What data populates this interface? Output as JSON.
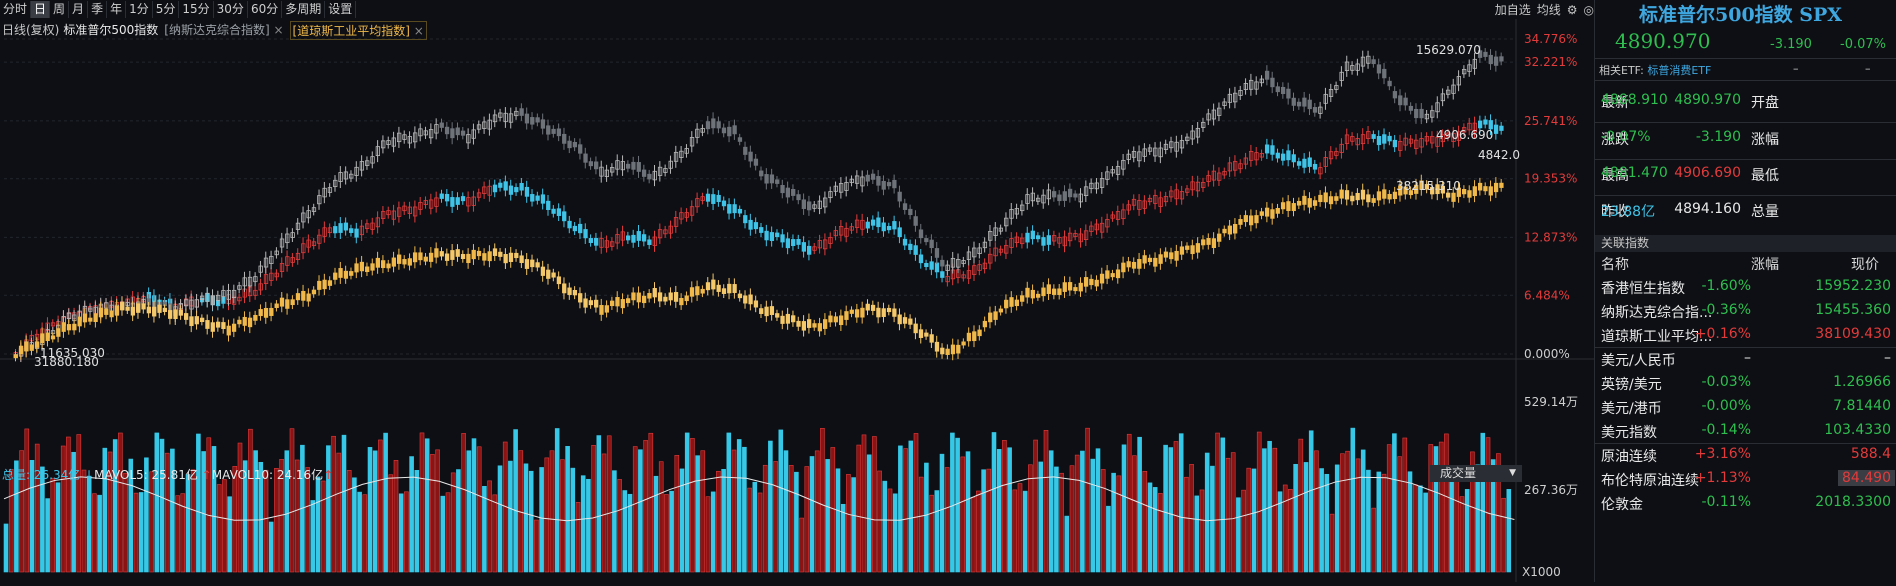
{
  "toolbar": {
    "periods": [
      "分时",
      "日",
      "周",
      "月",
      "季",
      "年",
      "1分",
      "5分",
      "15分",
      "30分",
      "60分",
      "多周期",
      "设置"
    ],
    "active": "日",
    "right_items": [
      "加自选",
      "均线"
    ]
  },
  "legend_row": {
    "prefix": "日线(复权)",
    "main_name": "标准普尔500指数",
    "compare1": "[纳斯达克综合指数]",
    "compare2": "[道琼斯工业平均指数]"
  },
  "y_axis_percent": [
    "34.776%",
    "32.221%",
    "25.741%",
    "19.353%",
    "12.873%",
    "6.484%",
    "0.000%"
  ],
  "annotations": {
    "nasdaq_high": "15629.070",
    "spx_high": "4906.690",
    "spx_last": "4842.0",
    "dow_high": "38215.310",
    "nasdaq_low": "11635.030",
    "dow_low": "31880.180"
  },
  "volume": {
    "label_total": "总量: 26.34亿",
    "label_ma5": "MAVOL5: 25.81亿",
    "label_ma10": "MAVOL10: 24.16亿",
    "dropdown": "成交量",
    "y_top": "529.14万",
    "y_mid": "267.36万",
    "unit": "X1000"
  },
  "panel": {
    "title": "标准普尔500指数 SPX",
    "price": "4890.970",
    "change": "-3.190",
    "change_pct": "-0.07%",
    "etf_label": "相关ETF:",
    "etf_name": "标普消费ETF",
    "etf_dash1": "–",
    "etf_dash2": "–",
    "quote": [
      {
        "l1": "最新",
        "v1": "4890.970",
        "c1": "green",
        "l2": "开盘",
        "v2": "4888.910",
        "c2": "green"
      },
      {
        "l1": "涨跌",
        "v1": "-3.190",
        "c1": "green",
        "l2": "涨幅",
        "v2": "-0.07%",
        "c2": "green"
      },
      {
        "l1": "最高",
        "v1": "4906.690",
        "c1": "red",
        "l2": "最低",
        "v2": "4881.470",
        "c2": "green"
      },
      {
        "l1": "昨收",
        "v1": "4894.160",
        "c1": "white",
        "l2": "总量",
        "v2": "23.88亿",
        "c2": "cyan"
      }
    ],
    "related_header": "关联指数",
    "col_name": "名称",
    "col_chg": "涨幅",
    "col_price": "现价",
    "related": [
      {
        "name": "香港恒生指数",
        "chg": "-1.60%",
        "price": "15952.230",
        "color": "green"
      },
      {
        "name": "纳斯达克综合指...",
        "chg": "-0.36%",
        "price": "15455.360",
        "color": "green"
      },
      {
        "name": "道琼斯工业平均...",
        "chg": "+0.16%",
        "price": "38109.430",
        "color": "red"
      },
      {
        "name": "美元/人民币",
        "chg": "–",
        "price": "–",
        "color": "white"
      },
      {
        "name": "英镑/美元",
        "chg": "-0.03%",
        "price": "1.26966",
        "color": "green"
      },
      {
        "name": "美元/港币",
        "chg": "-0.00%",
        "price": "7.81440",
        "color": "green"
      },
      {
        "name": "美元指数",
        "chg": "-0.14%",
        "price": "103.4330",
        "color": "green"
      },
      {
        "name": "原油连续",
        "chg": "+3.16%",
        "price": "588.4",
        "color": "red"
      },
      {
        "name": "布伦特原油连续",
        "chg": "+1.13%",
        "price": "84.490",
        "color": "red"
      },
      {
        "name": "伦敦金",
        "chg": "-0.11%",
        "price": "2018.3300",
        "color": "green"
      }
    ]
  },
  "chart_data": {
    "type": "line",
    "title": "标准普尔500指数",
    "y_unit": "%",
    "ylim": [
      0,
      34.776
    ],
    "series": [
      {
        "name": "标准普尔500指数",
        "color": "#e23b3b",
        "values": [
          0,
          2.5,
          4,
          5,
          5.5,
          6.2,
          5.2,
          6.0,
          5.8,
          7,
          9.5,
          12,
          14,
          13.5,
          15.5,
          16,
          17.2,
          16.8,
          18.5,
          18.2,
          16.5,
          14,
          12,
          13,
          12.5,
          15,
          17.5,
          16,
          13.5,
          12.5,
          11.5,
          13.5,
          14.5,
          14,
          10.5,
          8.5,
          9,
          11.5,
          13,
          12.5,
          13,
          14.5,
          16.5,
          17,
          18,
          19.5,
          21,
          22.5,
          21.5,
          20.5,
          23.5,
          24,
          23.2,
          23.5,
          24,
          25.5,
          24.8
        ]
      },
      {
        "name": "纳斯达克综合指数",
        "color": "#9aa0a6",
        "values": [
          0,
          1.5,
          4,
          5,
          5.2,
          5.6,
          5,
          6,
          6.5,
          8.5,
          12,
          15.5,
          19,
          20.5,
          23.5,
          24,
          25,
          24,
          26,
          26.5,
          25,
          23,
          20,
          21,
          19.5,
          22,
          25.5,
          24.5,
          20,
          18,
          16,
          18.5,
          19.5,
          18.5,
          13.5,
          9.5,
          11,
          14,
          17,
          17.5,
          17.5,
          19.5,
          22,
          22.5,
          23.5,
          26.5,
          29,
          30.5,
          28,
          27,
          31.5,
          32.5,
          28,
          26,
          29.5,
          33,
          32.2
        ]
      },
      {
        "name": "道琼斯工业平均指数",
        "color": "#f0b94a",
        "values": [
          0,
          1.5,
          3,
          4.2,
          5,
          5,
          4.5,
          3.5,
          2.8,
          4,
          5.5,
          6.5,
          8.5,
          9.5,
          10,
          10.5,
          11,
          10.8,
          11,
          10.5,
          9,
          6.5,
          5,
          6,
          6.5,
          6,
          7.5,
          7,
          5,
          3.8,
          3,
          4,
          5,
          4.5,
          2.5,
          0,
          2,
          5,
          6.5,
          7,
          7.5,
          8.5,
          10,
          10.5,
          11.5,
          12.5,
          14.5,
          15.5,
          16.5,
          17,
          17.5,
          17.2,
          17.8,
          18.5,
          17.5,
          18.2,
          18.4
        ]
      }
    ],
    "volume_ticks": [
      "529.14万",
      "267.36万"
    ]
  }
}
